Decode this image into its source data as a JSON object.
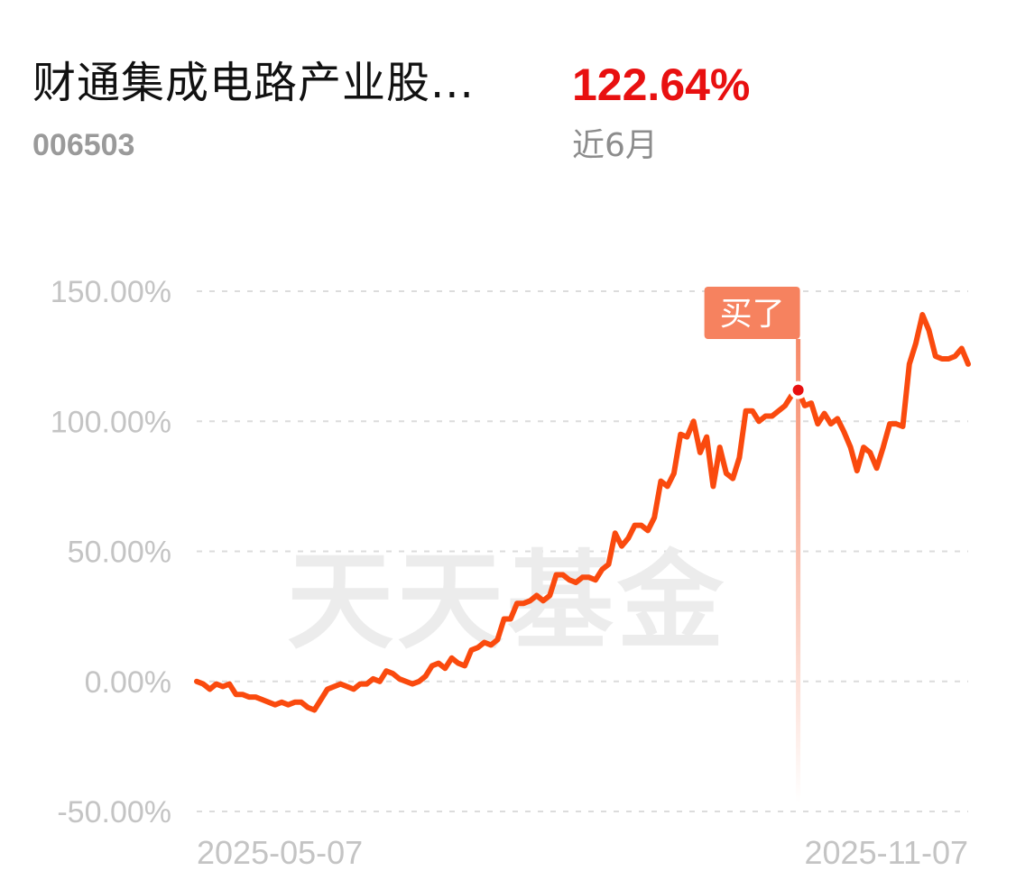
{
  "header": {
    "fund_name": "财通集成电路产业股...",
    "fund_code": "006503",
    "return_value": "122.64%",
    "return_period": "近6月"
  },
  "watermark": "天天基金",
  "colors": {
    "line": "#fa4a0e",
    "return_positive": "#e81010",
    "marker": "#f6825f",
    "axis_text": "#c4c4c4"
  },
  "chart_data": {
    "type": "line",
    "title": "",
    "xlabel": "",
    "ylabel": "",
    "ylim": [
      -50,
      150
    ],
    "yticks": [
      150,
      100,
      50,
      0,
      -50
    ],
    "ytick_labels": [
      "150.00%",
      "100.00%",
      "50.00%",
      "0.00%",
      "-50.00%"
    ],
    "xtick_labels": [
      "2025-05-07",
      "2025-11-07"
    ],
    "grid": true,
    "legend": "none",
    "y_unit": "%",
    "series": [
      {
        "values": [
          0,
          -1,
          -3,
          -1,
          -2,
          -1,
          -5,
          -5,
          -6,
          -6,
          -7,
          -8,
          -9,
          -8,
          -9,
          -8,
          -8,
          -10,
          -11,
          -7,
          -3,
          -2,
          -1,
          -2,
          -3,
          -1,
          -1,
          1,
          0,
          4,
          3,
          1,
          0,
          -1,
          0,
          2,
          6,
          7,
          5,
          9,
          7,
          6,
          12,
          13,
          15,
          14,
          16,
          24,
          24,
          30,
          30,
          31,
          33,
          31,
          33,
          41,
          41,
          39,
          38,
          40,
          40,
          39,
          43,
          45,
          57,
          52,
          55,
          60,
          60,
          58,
          63,
          77,
          75,
          80,
          95,
          94,
          100,
          88,
          94,
          75,
          90,
          80,
          78,
          86,
          104,
          104,
          100,
          102,
          102,
          104,
          106,
          110,
          112,
          106,
          107,
          99,
          103,
          99,
          101,
          96,
          90,
          81,
          90,
          88,
          82,
          90,
          99,
          99,
          98,
          122,
          130,
          141,
          135,
          125,
          124,
          124,
          125,
          128,
          122
        ]
      }
    ],
    "annotation": {
      "label": "买了",
      "index": 92
    }
  }
}
